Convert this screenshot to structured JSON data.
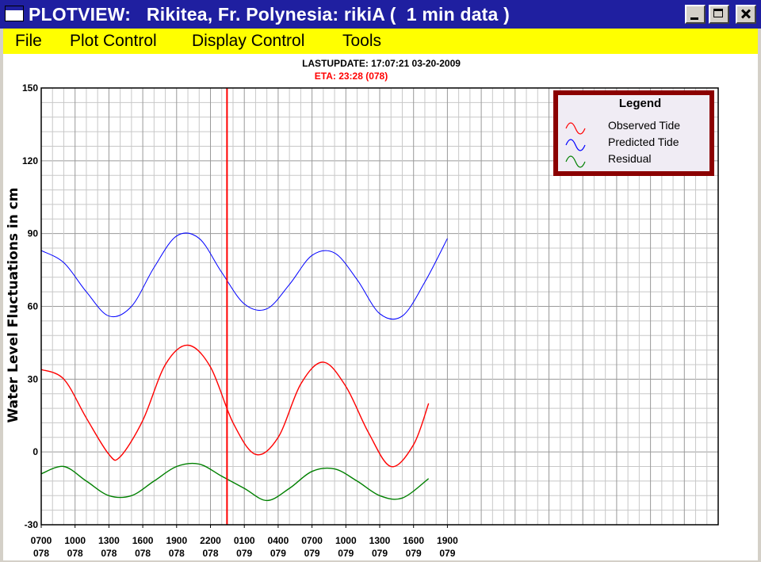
{
  "window": {
    "title": "PLOTVIEW:   Rikitea, Fr. Polynesia: rikiA (  1 min data )",
    "titlebar_color": "#1f1fa0"
  },
  "menu": {
    "items": [
      "File",
      "Plot Control",
      "Display Control",
      "Tools"
    ],
    "background": "#ffff00"
  },
  "header": {
    "last_update": "LASTUPDATE: 17:07:21  03-20-2009",
    "eta": "ETA: 23:28 (078)"
  },
  "chart_data": {
    "type": "line",
    "title": "",
    "xlabel": "",
    "ylabel": "Water Level Fluctuations in cm",
    "x_unit": "hour",
    "x_range": [
      "03-19-2009 07:00",
      "03-21-2009 19:00"
    ],
    "x_ticks": [
      {
        "time": "0700",
        "day": "078"
      },
      {
        "time": "1000",
        "day": "078"
      },
      {
        "time": "1300",
        "day": "078"
      },
      {
        "time": "1600",
        "day": "078"
      },
      {
        "time": "1900",
        "day": "078"
      },
      {
        "time": "2200",
        "day": "078"
      },
      {
        "time": "0100",
        "day": "079"
      },
      {
        "time": "0400",
        "day": "079"
      },
      {
        "time": "0700",
        "day": "079"
      },
      {
        "time": "1000",
        "day": "079"
      },
      {
        "time": "1300",
        "day": "079"
      },
      {
        "time": "1600",
        "day": "079"
      },
      {
        "time": "1900",
        "day": "079"
      }
    ],
    "ylim": [
      -30,
      150
    ],
    "y_ticks": [
      -30,
      0,
      30,
      60,
      90,
      120,
      150
    ],
    "grid": true,
    "eta_marker": "03-19-2009 23:28",
    "legend": {
      "title": "Legend",
      "position": "top-right",
      "entries": [
        "Observed Tide",
        "Predicted Tide",
        "Residual"
      ]
    },
    "series": [
      {
        "name": "Predicted Tide",
        "color": "#0000ff",
        "points": [
          [
            "03-19-2009 07:00",
            83
          ],
          [
            "03-19-2009 09:00",
            78
          ],
          [
            "03-19-2009 11:00",
            66
          ],
          [
            "03-19-2009 13:00",
            56
          ],
          [
            "03-19-2009 15:00",
            60
          ],
          [
            "03-19-2009 17:00",
            76
          ],
          [
            "03-19-2009 19:00",
            89
          ],
          [
            "03-19-2009 21:00",
            88
          ],
          [
            "03-19-2009 23:00",
            74
          ],
          [
            "03-20-2009 01:00",
            61
          ],
          [
            "03-20-2009 03:00",
            59
          ],
          [
            "03-20-2009 05:00",
            69
          ],
          [
            "03-20-2009 07:00",
            81
          ],
          [
            "03-20-2009 09:00",
            82
          ],
          [
            "03-20-2009 11:00",
            71
          ],
          [
            "03-20-2009 13:00",
            57
          ],
          [
            "03-20-2009 15:00",
            56
          ],
          [
            "03-20-2009 17:00",
            70
          ],
          [
            "03-20-2009 19:00",
            88
          ]
        ]
      },
      {
        "name": "Observed Tide",
        "color": "#ff0000",
        "points": [
          [
            "03-19-2009 07:00",
            34
          ],
          [
            "03-19-2009 09:00",
            30
          ],
          [
            "03-19-2009 11:00",
            14
          ],
          [
            "03-19-2009 13:00",
            -1
          ],
          [
            "03-19-2009 14:00",
            -2
          ],
          [
            "03-19-2009 16:00",
            13
          ],
          [
            "03-19-2009 18:00",
            36
          ],
          [
            "03-19-2009 20:00",
            44
          ],
          [
            "03-19-2009 22:00",
            35
          ],
          [
            "03-20-2009 00:00",
            12
          ],
          [
            "03-20-2009 02:00",
            -1
          ],
          [
            "03-20-2009 04:00",
            6
          ],
          [
            "03-20-2009 06:00",
            28
          ],
          [
            "03-20-2009 08:00",
            37
          ],
          [
            "03-20-2009 10:00",
            27
          ],
          [
            "03-20-2009 12:00",
            8
          ],
          [
            "03-20-2009 14:00",
            -6
          ],
          [
            "03-20-2009 16:00",
            3
          ],
          [
            "03-20-2009 17:20",
            20
          ]
        ]
      },
      {
        "name": "Residual",
        "color": "#008000",
        "points": [
          [
            "03-19-2009 07:00",
            -9
          ],
          [
            "03-19-2009 09:00",
            -6
          ],
          [
            "03-19-2009 11:00",
            -12
          ],
          [
            "03-19-2009 13:00",
            -18
          ],
          [
            "03-19-2009 15:00",
            -18
          ],
          [
            "03-19-2009 17:00",
            -12
          ],
          [
            "03-19-2009 19:00",
            -6
          ],
          [
            "03-19-2009 21:00",
            -5
          ],
          [
            "03-19-2009 23:00",
            -10
          ],
          [
            "03-20-2009 01:00",
            -15
          ],
          [
            "03-20-2009 03:00",
            -20
          ],
          [
            "03-20-2009 05:00",
            -15
          ],
          [
            "03-20-2009 07:00",
            -8
          ],
          [
            "03-20-2009 09:00",
            -7
          ],
          [
            "03-20-2009 11:00",
            -12
          ],
          [
            "03-20-2009 13:00",
            -18
          ],
          [
            "03-20-2009 15:00",
            -19
          ],
          [
            "03-20-2009 17:20",
            -11
          ]
        ]
      }
    ]
  }
}
